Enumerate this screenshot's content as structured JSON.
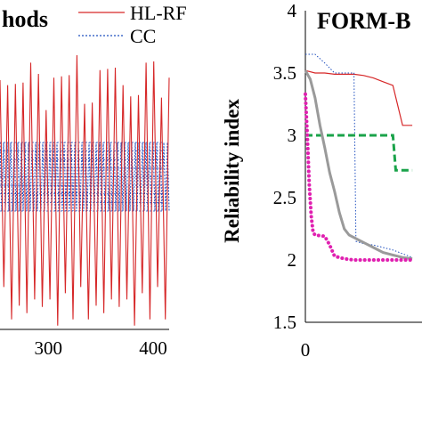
{
  "chart_data": [
    {
      "type": "line",
      "title": "hods",
      "xlim": [
        260,
        400
      ],
      "xticks": [
        300,
        400
      ],
      "x_tick_labels": [
        "300",
        "400"
      ],
      "legend": {
        "placement": "top-right",
        "entries": [
          {
            "label": "HL-RF",
            "color": "#d62728",
            "style": "solid"
          },
          {
            "label": "CC",
            "color": "#1f4fbf",
            "style": "dotted"
          }
        ]
      },
      "series": [
        {
          "name": "HL-RF",
          "color": "#d62728",
          "pattern": "oscillating",
          "approx_peaks": [
            3.5,
            3.7,
            3.65,
            3.6,
            3.7,
            3.55
          ],
          "approx_troughs": [
            1.6,
            1.5,
            1.45,
            1.55,
            1.5
          ]
        },
        {
          "name": "CC",
          "color": "#1f4fbf",
          "pattern": "oscillating",
          "approx_range": [
            2.45,
            3.0
          ]
        }
      ]
    },
    {
      "type": "line",
      "title": "FORM-B",
      "ylabel": "Reliability index",
      "xlabel": "",
      "ylim": [
        1.5,
        4
      ],
      "yticks": [
        1.5,
        2,
        2.5,
        3,
        3.5,
        4
      ],
      "y_tick_labels": [
        "1.5",
        "2",
        "2.5",
        "3",
        "3.5",
        "4"
      ],
      "x_tick_labels": [
        "0"
      ],
      "grid": false,
      "series": [
        {
          "color": "#d62728",
          "style": "solid",
          "points": [
            [
              0,
              3.52
            ],
            [
              1,
              3.5
            ],
            [
              2,
              3.5
            ],
            [
              3,
              3.49
            ],
            [
              4,
              3.49
            ],
            [
              5,
              3.49
            ],
            [
              6,
              3.48
            ],
            [
              7,
              3.46
            ],
            [
              8,
              3.43
            ],
            [
              9,
              3.4
            ],
            [
              10,
              3.08
            ],
            [
              11,
              3.08
            ]
          ]
        },
        {
          "color": "#1f4fbf",
          "style": "dotted",
          "points": [
            [
              0,
              3.65
            ],
            [
              1,
              3.65
            ],
            [
              2,
              3.58
            ],
            [
              3,
              3.5
            ],
            [
              4,
              3.5
            ],
            [
              5,
              3.5
            ],
            [
              5.2,
              2.15
            ],
            [
              6,
              2.13
            ],
            [
              7,
              2.12
            ],
            [
              8,
              2.1
            ],
            [
              9,
              2.08
            ],
            [
              10,
              2.05
            ],
            [
              11,
              2.02
            ]
          ]
        },
        {
          "color": "#1aa34a",
          "style": "dashed",
          "points": [
            [
              0,
              3.0
            ],
            [
              1,
              3.0
            ],
            [
              2,
              3.0
            ],
            [
              3,
              3.0
            ],
            [
              4,
              3.0
            ],
            [
              5,
              3.0
            ],
            [
              6,
              3.0
            ],
            [
              7,
              3.0
            ],
            [
              8,
              3.0
            ],
            [
              9,
              3.0
            ],
            [
              9.3,
              2.72
            ],
            [
              10,
              2.72
            ],
            [
              11,
              2.72
            ]
          ]
        },
        {
          "color": "#9a9a9a",
          "style": "solid",
          "points": [
            [
              0,
              3.52
            ],
            [
              0.5,
              3.45
            ],
            [
              1,
              3.3
            ],
            [
              1.5,
              3.08
            ],
            [
              2,
              2.9
            ],
            [
              2.5,
              2.7
            ],
            [
              3,
              2.55
            ],
            [
              3.5,
              2.38
            ],
            [
              4,
              2.25
            ],
            [
              4.5,
              2.2
            ],
            [
              5,
              2.18
            ],
            [
              6,
              2.14
            ],
            [
              7,
              2.1
            ],
            [
              8,
              2.06
            ],
            [
              9,
              2.04
            ],
            [
              10,
              2.02
            ],
            [
              11,
              2.01
            ]
          ]
        },
        {
          "color": "#e020b0",
          "style": "dotted",
          "points": [
            [
              0,
              3.33
            ],
            [
              0.2,
              3.0
            ],
            [
              0.4,
              2.6
            ],
            [
              0.6,
              2.35
            ],
            [
              0.8,
              2.22
            ],
            [
              1,
              2.2
            ],
            [
              2,
              2.19
            ],
            [
              2.5,
              2.12
            ],
            [
              3,
              2.03
            ],
            [
              4,
              2.01
            ],
            [
              5,
              2.0
            ],
            [
              6,
              2.0
            ],
            [
              7,
              2.0
            ],
            [
              8,
              2.0
            ],
            [
              9,
              2.0
            ],
            [
              10,
              2.0
            ],
            [
              11,
              2.0
            ]
          ]
        }
      ]
    }
  ]
}
